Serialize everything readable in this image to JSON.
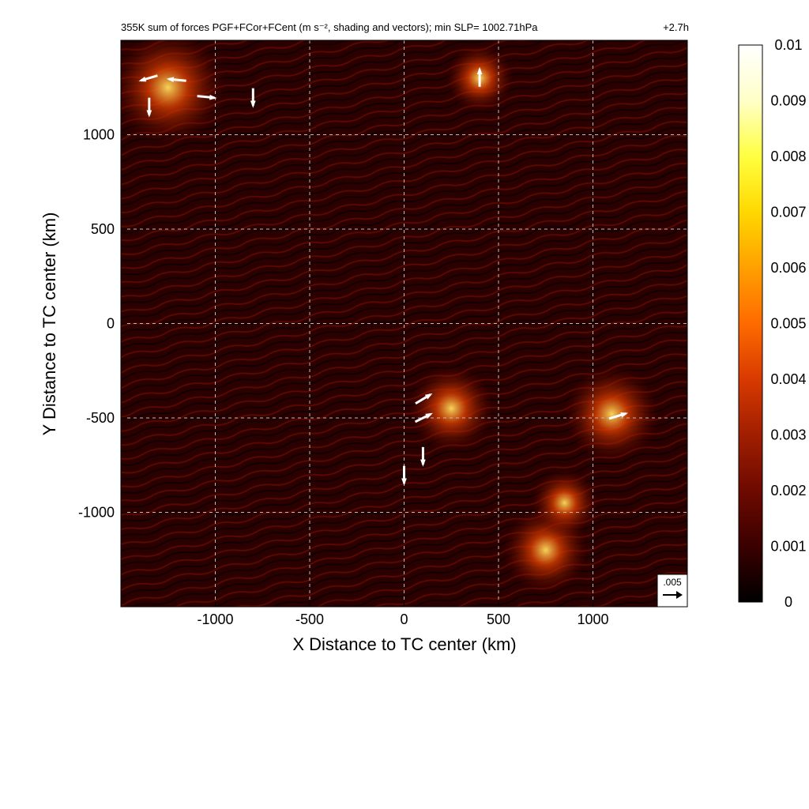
{
  "chart_data": {
    "type": "heatmap",
    "title": "355K sum of forces PGF+FCor+FCent (m s⁻², shading and vectors); min SLP= 1002.71hPa",
    "time_label": "+2.7h",
    "xlabel": "X Distance to TC center (km)",
    "ylabel": "Y Distance to TC center (km)",
    "xlim": [
      -1500,
      1500
    ],
    "ylim": [
      -1500,
      1500
    ],
    "x_ticks": [
      "-1000",
      "-500",
      "0",
      "500",
      "1000"
    ],
    "y_ticks": [
      "1000",
      "500",
      "0",
      "-500",
      "-1000"
    ],
    "grid": true,
    "colorbar": {
      "min": 0,
      "max": 0.01,
      "ticks": [
        "0.01",
        "0.009",
        "0.008",
        "0.007",
        "0.006",
        "0.005",
        "0.004",
        "0.003",
        "0.002",
        "0.001",
        "0"
      ],
      "colormap": [
        "#000000",
        "#3a0000",
        "#6e0a00",
        "#a01e00",
        "#d83a00",
        "#ff6a00",
        "#ffa000",
        "#ffd800",
        "#ffff40",
        "#ffffc8",
        "#ffffff"
      ]
    },
    "reference_vector": {
      "label": ".005",
      "value": 0.005
    },
    "hotspots": [
      {
        "x": -1250,
        "y": 1250,
        "intensity": 0.008
      },
      {
        "x": 250,
        "y": -450,
        "intensity": 0.005
      },
      {
        "x": 1100,
        "y": -480,
        "intensity": 0.006
      },
      {
        "x": 750,
        "y": -1200,
        "intensity": 0.005
      },
      {
        "x": 850,
        "y": -950,
        "intensity": 0.003
      },
      {
        "x": 400,
        "y": 1300,
        "intensity": 0.003
      }
    ],
    "vectors": [
      {
        "x": -1350,
        "y": 1300,
        "u": -1,
        "v": -0.3
      },
      {
        "x": -1200,
        "y": 1290,
        "u": -1,
        "v": 0.1
      },
      {
        "x": -1050,
        "y": 1200,
        "u": 1,
        "v": -0.1
      },
      {
        "x": -1350,
        "y": 1150,
        "u": 0,
        "v": -1
      },
      {
        "x": -800,
        "y": 1200,
        "u": 0,
        "v": -1
      },
      {
        "x": 100,
        "y": -400,
        "u": 1,
        "v": 0.6
      },
      {
        "x": 100,
        "y": -500,
        "u": 1,
        "v": 0.5
      },
      {
        "x": 1130,
        "y": -490,
        "u": 1,
        "v": 0.3
      },
      {
        "x": 400,
        "y": 1300,
        "u": 0,
        "v": 1
      },
      {
        "x": 100,
        "y": -700,
        "u": 0,
        "v": -1
      },
      {
        "x": 0,
        "y": -800,
        "u": 0,
        "v": -1
      }
    ]
  }
}
